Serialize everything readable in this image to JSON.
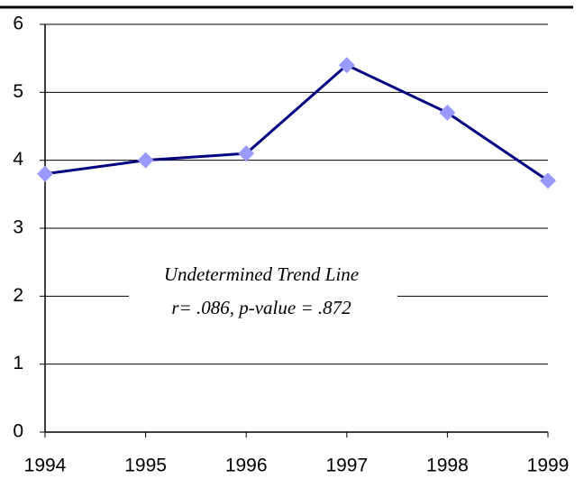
{
  "chart_data": {
    "type": "line",
    "x": [
      1994,
      1995,
      1996,
      1997,
      1998,
      1999
    ],
    "values": [
      3.8,
      4.0,
      4.1,
      5.4,
      4.7,
      3.7
    ],
    "line_color": "#000080",
    "marker_color": "#9999ff",
    "xlim": [
      1994,
      1999
    ],
    "xticks": [
      1994,
      1995,
      1996,
      1997,
      1998,
      1999
    ],
    "ylim": [
      0,
      6
    ],
    "yticks": [
      0,
      1,
      2,
      3,
      4,
      5,
      6
    ],
    "grid": true,
    "annotation": [
      "Undetermined Trend Line",
      "r= .086, p-value = .872"
    ]
  }
}
